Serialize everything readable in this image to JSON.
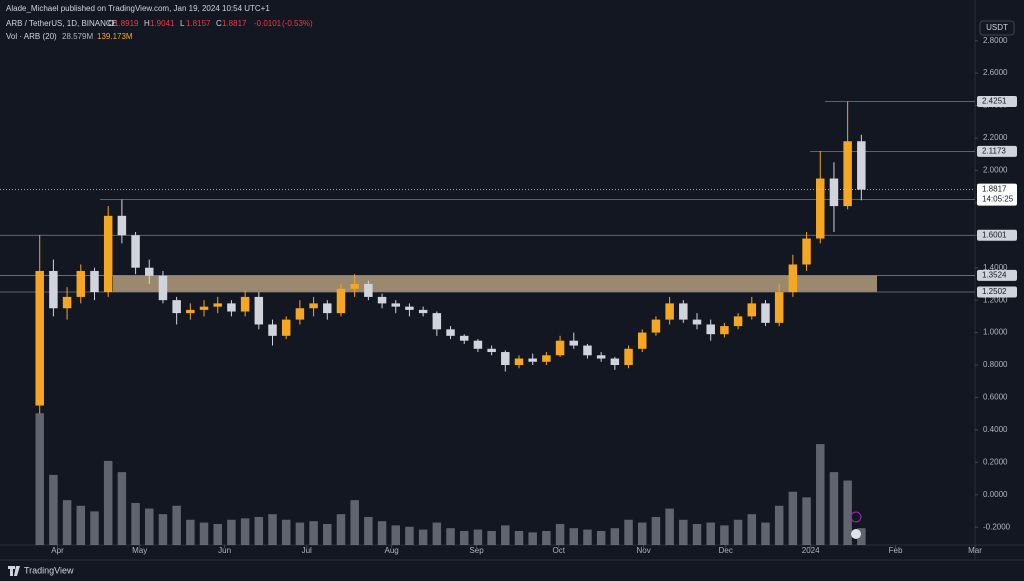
{
  "chart_data": {
    "type": "candlestick",
    "publisher": "Alade_Michael published on TradingView.com, Jan 19, 2024 10:54 UTC+1",
    "legend": {
      "symbol": "ARB / TetherUS, 1D, BINANCE",
      "fields": [
        {
          "key": "O",
          "value": 1.8919
        },
        {
          "key": "H",
          "value": 1.9041
        },
        {
          "key": "L",
          "value": 1.8157
        },
        {
          "key": "C",
          "value": 1.8817
        }
      ],
      "change": -0.0101,
      "change_pct": {
        "value": -0.53,
        "label": "(-0.53%)"
      }
    },
    "volume_legend": {
      "label": "Vol · ARB (20)",
      "value": {
        "value": 28.579,
        "label": "28.579M"
      },
      "ma": {
        "value": 139.173,
        "label": "139.173M"
      }
    },
    "currency": "USDT",
    "timer": "14:05:25",
    "brand": "TradingView",
    "up_color": "#f5a623",
    "down_color": "#d1d4dc",
    "volume_color": "#9598a1",
    "grid": false,
    "xlim": [
      "2023-03-11",
      "2024-03-01"
    ],
    "ylim": [
      -0.31,
      2.94
    ],
    "vlim": [
      0,
      1880
    ],
    "xticks": [
      {
        "value": "2023-04-01",
        "label": "Apr"
      },
      {
        "value": "2023-05-01",
        "label": "May"
      },
      {
        "value": "2023-06-01",
        "label": "Jun"
      },
      {
        "value": "2023-07-01",
        "label": "Jul"
      },
      {
        "value": "2023-08-01",
        "label": "Aug"
      },
      {
        "value": "2023-09-01",
        "label": "Sep"
      },
      {
        "value": "2023-10-01",
        "label": "Oct"
      },
      {
        "value": "2023-11-01",
        "label": "Nov"
      },
      {
        "value": "2023-12-01",
        "label": "Dec"
      },
      {
        "value": "2024-01-01",
        "label": "2024"
      },
      {
        "value": "2024-02-01",
        "label": "Feb"
      },
      {
        "value": "2024-03-01",
        "label": "Mar"
      }
    ],
    "yticks": [
      {
        "value": 2.8,
        "label": "2.8000"
      },
      {
        "value": 2.6,
        "label": "2.6000"
      },
      {
        "value": 2.4,
        "label": "2.4000"
      },
      {
        "value": 2.2,
        "label": "2.2000"
      },
      {
        "value": 2.0,
        "label": "2.0000"
      },
      {
        "value": 1.8,
        "label": "1.8000"
      },
      {
        "value": 1.6,
        "label": "1.6000"
      },
      {
        "value": 1.4,
        "label": "1.4000"
      },
      {
        "value": 1.2,
        "label": "1.2000"
      },
      {
        "value": 1.0,
        "label": "1.0000"
      },
      {
        "value": 0.8,
        "label": "0.8000"
      },
      {
        "value": 0.6,
        "label": "0.6000"
      },
      {
        "value": 0.4,
        "label": "0.4000"
      },
      {
        "value": 0.2,
        "label": "0.2000"
      },
      {
        "value": 0,
        "label": "0.0000"
      },
      {
        "value": -0.2,
        "label": "-0.2000"
      }
    ],
    "levels": [
      2.4251,
      2.1173,
      1.8208,
      1.6001,
      1.3524,
      1.2502
    ],
    "candles": {
      "x": [
        "2023-03-23",
        "2023-03-28",
        "2023-04-02",
        "2023-04-07",
        "2023-04-12",
        "2023-04-17",
        "2023-04-22",
        "2023-04-27",
        "2023-05-02",
        "2023-05-07",
        "2023-05-12",
        "2023-05-17",
        "2023-05-22",
        "2023-05-27",
        "2023-06-01",
        "2023-06-06",
        "2023-06-11",
        "2023-06-16",
        "2023-06-21",
        "2023-06-26",
        "2023-07-01",
        "2023-07-06",
        "2023-07-11",
        "2023-07-16",
        "2023-07-21",
        "2023-07-26",
        "2023-07-31",
        "2023-08-05",
        "2023-08-10",
        "2023-08-15",
        "2023-08-20",
        "2023-08-25",
        "2023-08-30",
        "2023-09-04",
        "2023-09-09",
        "2023-09-14",
        "2023-09-19",
        "2023-09-24",
        "2023-09-29",
        "2023-10-04",
        "2023-10-09",
        "2023-10-14",
        "2023-10-19",
        "2023-10-24",
        "2023-10-29",
        "2023-11-03",
        "2023-11-08",
        "2023-11-13",
        "2023-11-18",
        "2023-11-23",
        "2023-11-28",
        "2023-12-03",
        "2023-12-08",
        "2023-12-13",
        "2023-12-18",
        "2023-12-23",
        "2023-12-28",
        "2024-01-02",
        "2024-01-07",
        "2024-01-12",
        "2024-01-17"
      ],
      "open": [
        0.55,
        1.38,
        1.15,
        1.22,
        1.38,
        1.25,
        1.72,
        1.6,
        1.4,
        1.35,
        1.2,
        1.12,
        1.14,
        1.16,
        1.18,
        1.13,
        1.22,
        1.05,
        0.98,
        1.08,
        1.15,
        1.18,
        1.12,
        1.27,
        1.3,
        1.22,
        1.18,
        1.16,
        1.14,
        1.12,
        1.02,
        0.98,
        0.95,
        0.9,
        0.88,
        0.8,
        0.84,
        0.82,
        0.86,
        0.95,
        0.92,
        0.86,
        0.84,
        0.8,
        0.9,
        1.0,
        1.08,
        1.18,
        1.08,
        1.05,
        0.99,
        1.04,
        1.1,
        1.18,
        1.06,
        1.25,
        1.42,
        1.58,
        1.95,
        1.78,
        2.18
      ],
      "high": [
        1.6,
        1.45,
        1.28,
        1.42,
        1.4,
        1.78,
        1.82,
        1.62,
        1.45,
        1.38,
        1.22,
        1.18,
        1.2,
        1.22,
        1.2,
        1.26,
        1.25,
        1.08,
        1.1,
        1.2,
        1.22,
        1.2,
        1.3,
        1.36,
        1.32,
        1.24,
        1.2,
        1.18,
        1.16,
        1.13,
        1.04,
        0.99,
        0.96,
        0.92,
        0.89,
        0.86,
        0.87,
        0.88,
        0.98,
        1.0,
        0.93,
        0.88,
        0.85,
        0.92,
        1.02,
        1.1,
        1.22,
        1.2,
        1.12,
        1.08,
        1.06,
        1.12,
        1.22,
        1.2,
        1.3,
        1.48,
        1.62,
        2.12,
        2.05,
        2.4251,
        2.22
      ],
      "low": [
        0.5,
        1.1,
        1.08,
        1.18,
        1.2,
        1.22,
        1.55,
        1.36,
        1.3,
        1.18,
        1.05,
        1.08,
        1.1,
        1.12,
        1.1,
        1.1,
        1.02,
        0.92,
        0.96,
        1.05,
        1.1,
        1.08,
        1.1,
        1.22,
        1.2,
        1.15,
        1.12,
        1.1,
        1.1,
        0.98,
        0.96,
        0.93,
        0.88,
        0.86,
        0.76,
        0.78,
        0.8,
        0.8,
        0.85,
        0.9,
        0.84,
        0.82,
        0.77,
        0.78,
        0.88,
        0.98,
        1.05,
        1.06,
        1.02,
        0.95,
        0.97,
        1.02,
        1.08,
        1.04,
        1.04,
        1.22,
        1.38,
        1.55,
        1.62,
        1.76,
        1.8157
      ],
      "close": [
        1.38,
        1.15,
        1.22,
        1.38,
        1.25,
        1.72,
        1.6,
        1.4,
        1.35,
        1.2,
        1.12,
        1.14,
        1.16,
        1.18,
        1.13,
        1.22,
        1.05,
        0.98,
        1.08,
        1.15,
        1.18,
        1.12,
        1.27,
        1.3,
        1.22,
        1.18,
        1.16,
        1.14,
        1.12,
        1.02,
        0.98,
        0.95,
        0.9,
        0.88,
        0.8,
        0.84,
        0.82,
        0.86,
        0.95,
        0.92,
        0.86,
        0.84,
        0.8,
        0.9,
        1.0,
        1.08,
        1.18,
        1.08,
        1.05,
        0.99,
        1.04,
        1.1,
        1.18,
        1.06,
        1.25,
        1.42,
        1.58,
        1.95,
        1.78,
        2.18,
        1.8817
      ],
      "volume": [
        470,
        250,
        160,
        140,
        120,
        300,
        260,
        150,
        130,
        110,
        140,
        90,
        80,
        75,
        90,
        95,
        100,
        110,
        90,
        80,
        85,
        75,
        110,
        160,
        100,
        85,
        70,
        65,
        55,
        80,
        60,
        50,
        55,
        50,
        70,
        50,
        45,
        50,
        75,
        60,
        55,
        50,
        60,
        90,
        80,
        100,
        130,
        90,
        75,
        80,
        70,
        90,
        110,
        80,
        140,
        190,
        170,
        360,
        260,
        230,
        60
      ]
    }
  }
}
